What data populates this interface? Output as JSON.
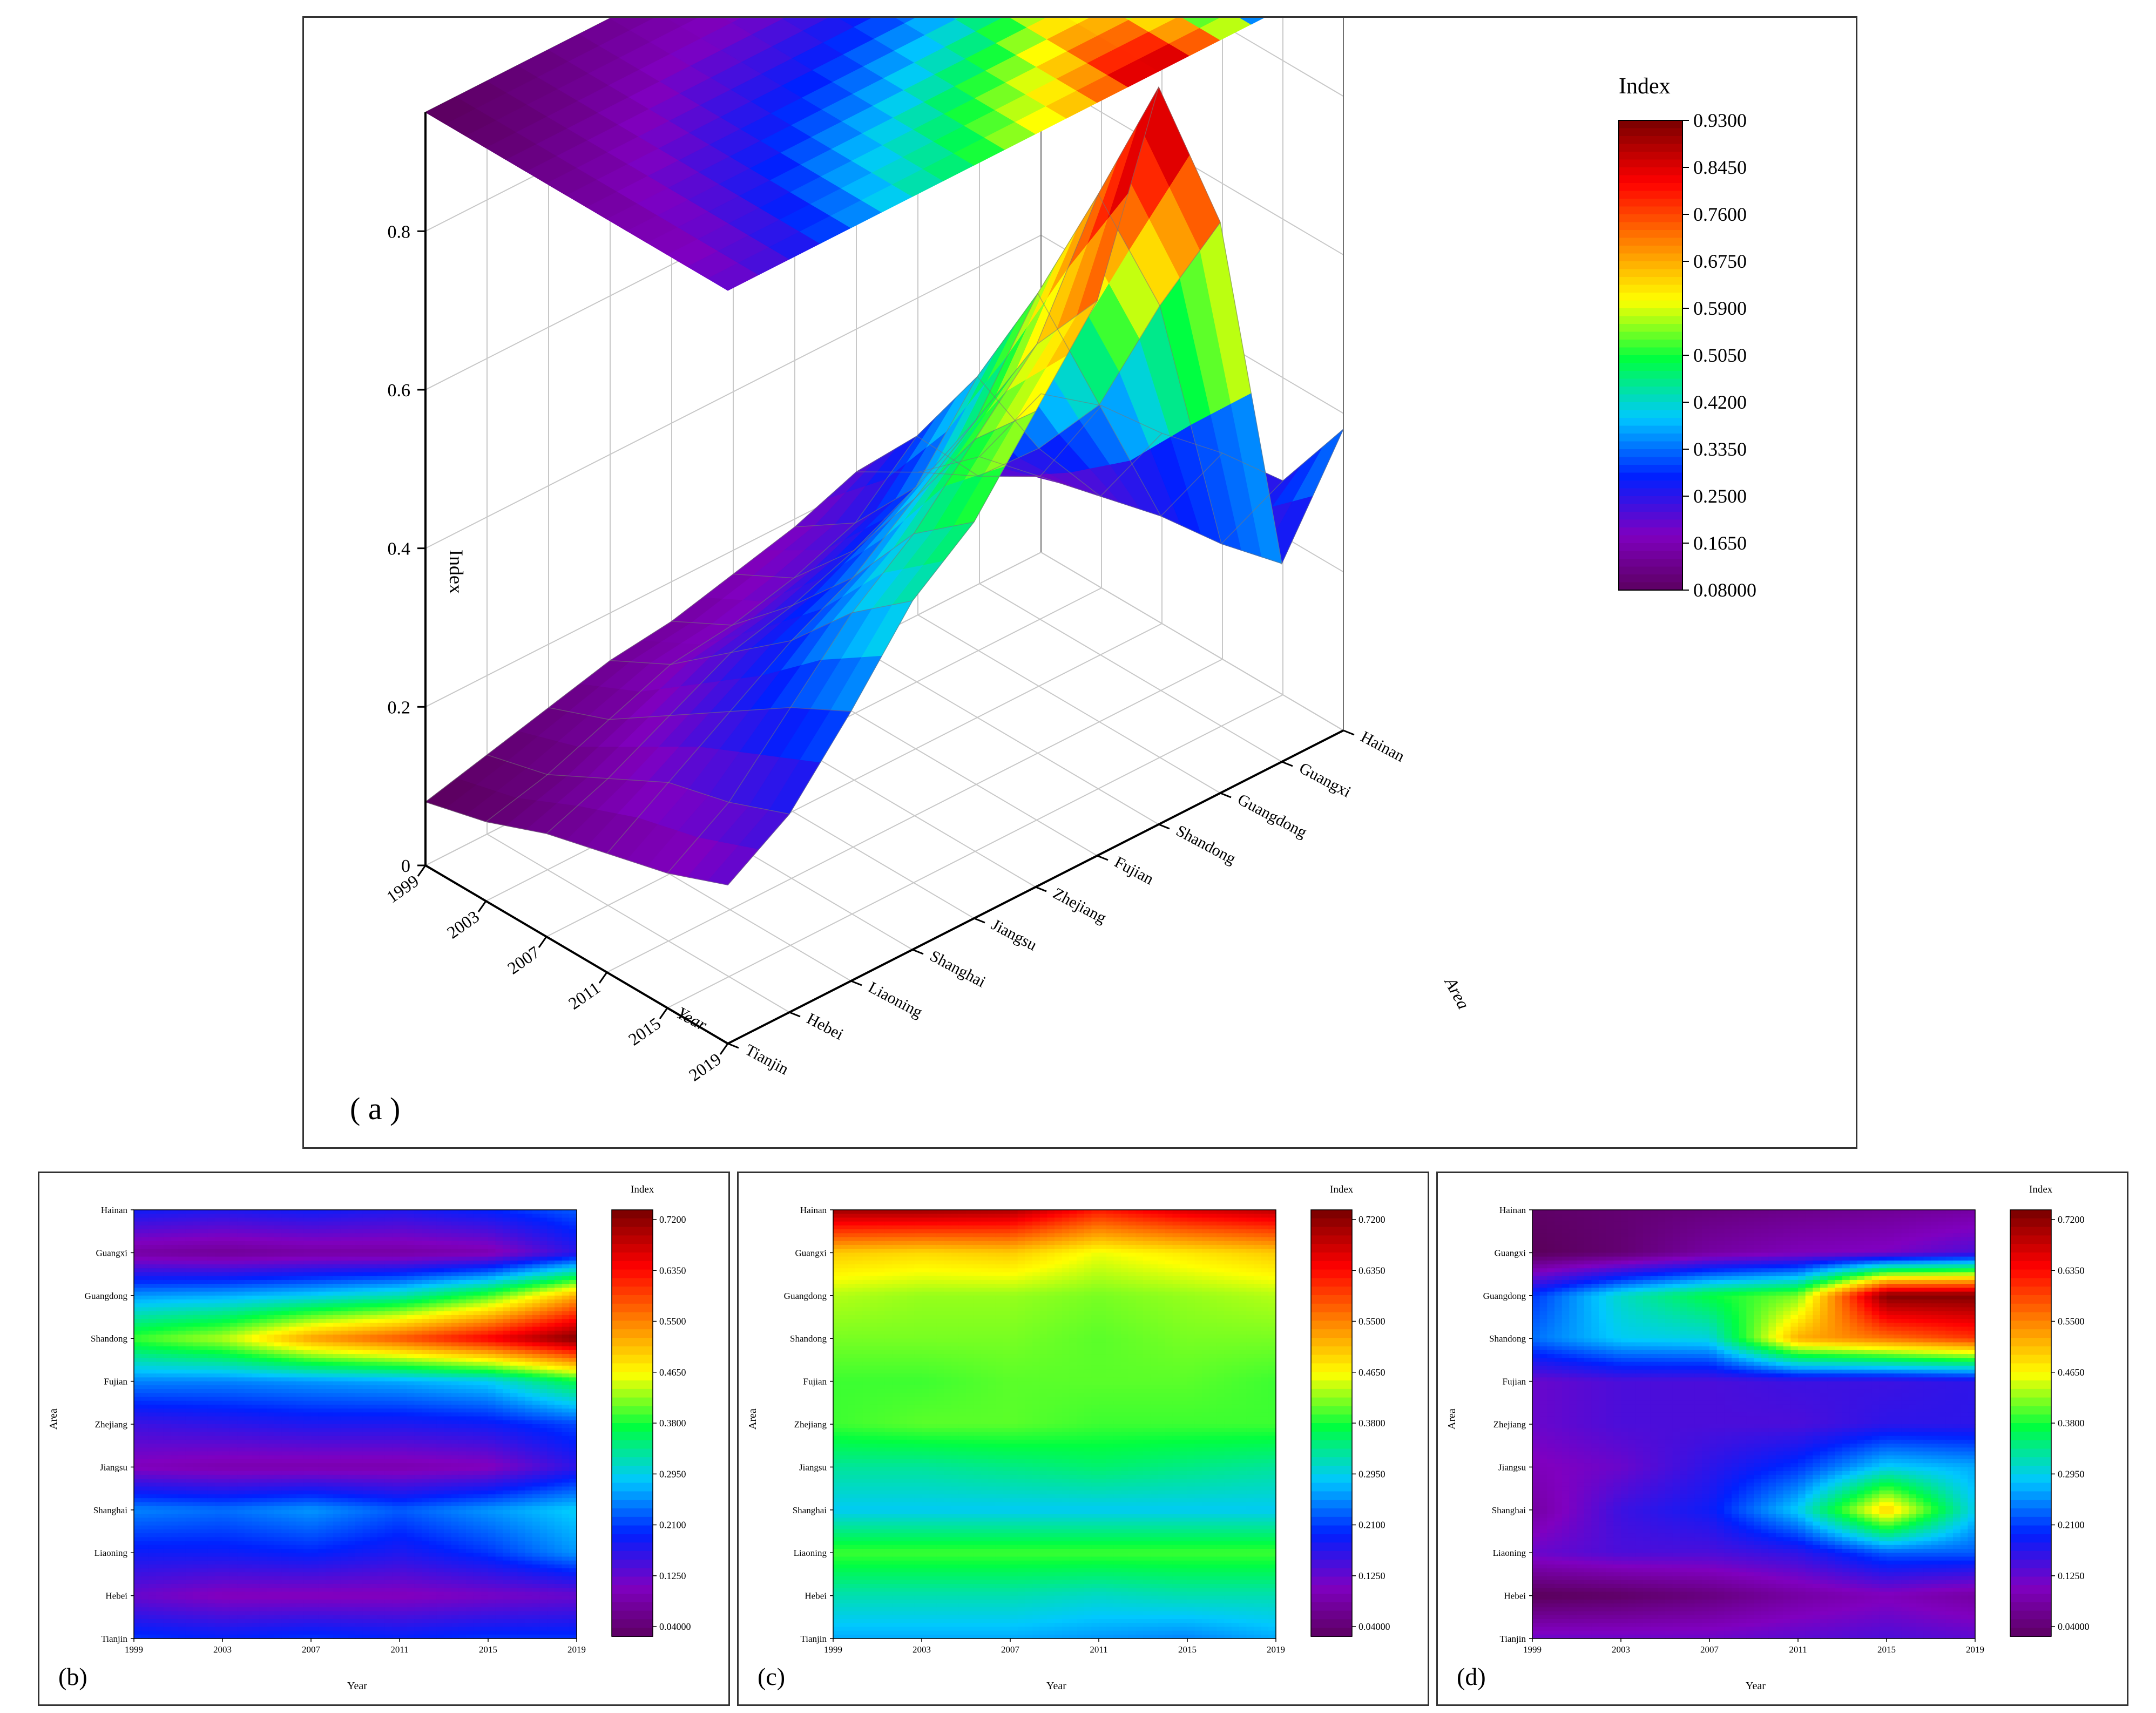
{
  "colors": {
    "stops": [
      "#5a005a",
      "#8000c0",
      "#0020ff",
      "#00c8ff",
      "#00ff40",
      "#ffff00",
      "#ff8000",
      "#ff0000",
      "#800000"
    ],
    "axis": "#000000",
    "grid": "#c8c8c8"
  },
  "panel_a": {
    "label": "( a )",
    "legend_title": "Index",
    "legend_ticks": [
      "0.9300",
      "0.8450",
      "0.7600",
      "0.6750",
      "0.5900",
      "0.5050",
      "0.4200",
      "0.3350",
      "0.2500",
      "0.1650",
      "0.08000"
    ],
    "z_label": "Index",
    "x_label": "Year",
    "y_label": "Area",
    "z_ticks": [
      "0",
      "0.2",
      "0.4",
      "0.6",
      "0.8"
    ],
    "year_ticks": [
      "1999",
      "2003",
      "2007",
      "2011",
      "2015",
      "2019"
    ],
    "area_ticks": [
      "Tianjin",
      "Hebei",
      "Liaoning",
      "Shanghai",
      "Jiangsu",
      "Zhejiang",
      "Fujian",
      "Shandong",
      "Guangdong",
      "Guangxi",
      "Hainan"
    ]
  },
  "panel_b": {
    "label": "(b)",
    "legend_title": "Index",
    "x_label": "Year",
    "y_label": "Area",
    "legend_ticks": [
      "0.7200",
      "0.6350",
      "0.5500",
      "0.4650",
      "0.3800",
      "0.2950",
      "0.2100",
      "0.1250",
      "0.04000"
    ]
  },
  "panel_c": {
    "label": "(c)",
    "legend_title": "Index",
    "x_label": "Year",
    "y_label": "Area",
    "legend_ticks": [
      "0.7200",
      "0.6350",
      "0.5500",
      "0.4650",
      "0.3800",
      "0.2950",
      "0.2100",
      "0.1250",
      "0.04000"
    ]
  },
  "panel_d": {
    "label": "(d)",
    "legend_title": "Index",
    "x_label": "Year",
    "y_label": "Area",
    "legend_ticks": [
      "0.7200",
      "0.6350",
      "0.5500",
      "0.4650",
      "0.3800",
      "0.2950",
      "0.2100",
      "0.1250",
      "0.04000"
    ]
  },
  "chart_data": [
    {
      "type": "surface3d",
      "panel": "a",
      "zlim": [
        0,
        0.93
      ],
      "colorscale_range": [
        0.08,
        0.93
      ],
      "x": [
        1999,
        2003,
        2007,
        2011,
        2015,
        2019
      ],
      "y": [
        "Tianjin",
        "Hebei",
        "Liaoning",
        "Shanghai",
        "Jiangsu",
        "Zhejiang",
        "Fujian",
        "Shandong",
        "Guangdong",
        "Guangxi",
        "Hainan"
      ],
      "z": [
        [
          0.08,
          0.1,
          0.12,
          0.14,
          0.15,
          0.17,
          0.19,
          0.22,
          0.18,
          0.16,
          0.2
        ],
        [
          0.1,
          0.12,
          0.15,
          0.18,
          0.19,
          0.21,
          0.24,
          0.31,
          0.22,
          0.18,
          0.23
        ],
        [
          0.13,
          0.16,
          0.2,
          0.24,
          0.26,
          0.29,
          0.33,
          0.43,
          0.3,
          0.2,
          0.24
        ],
        [
          0.15,
          0.2,
          0.25,
          0.3,
          0.34,
          0.4,
          0.46,
          0.58,
          0.4,
          0.22,
          0.26
        ],
        [
          0.17,
          0.22,
          0.3,
          0.38,
          0.44,
          0.52,
          0.6,
          0.75,
          0.57,
          0.23,
          0.27
        ],
        [
          0.2,
          0.25,
          0.34,
          0.44,
          0.5,
          0.6,
          0.7,
          0.93,
          0.72,
          0.25,
          0.38
        ]
      ]
    },
    {
      "type": "heatmap",
      "panel": "b",
      "colorscale_range": [
        0.04,
        0.72
      ],
      "x": [
        1999,
        2003,
        2007,
        2011,
        2015,
        2019
      ],
      "y": [
        "Tianjin",
        "Hebei",
        "Liaoning",
        "Shanghai",
        "Jiangsu",
        "Zhejiang",
        "Fujian",
        "Shandong",
        "Guangdong",
        "Guangxi",
        "Hainan"
      ],
      "z": [
        [
          0.22,
          0.14,
          0.2,
          0.26,
          0.12,
          0.17,
          0.26,
          0.4,
          0.27,
          0.1,
          0.2
        ],
        [
          0.21,
          0.12,
          0.2,
          0.25,
          0.11,
          0.18,
          0.26,
          0.44,
          0.28,
          0.09,
          0.19
        ],
        [
          0.22,
          0.12,
          0.21,
          0.27,
          0.11,
          0.19,
          0.27,
          0.53,
          0.3,
          0.1,
          0.2
        ],
        [
          0.21,
          0.12,
          0.19,
          0.24,
          0.11,
          0.19,
          0.28,
          0.58,
          0.33,
          0.1,
          0.19
        ],
        [
          0.22,
          0.13,
          0.22,
          0.27,
          0.12,
          0.2,
          0.3,
          0.64,
          0.4,
          0.11,
          0.21
        ],
        [
          0.22,
          0.14,
          0.27,
          0.3,
          0.18,
          0.23,
          0.38,
          0.72,
          0.52,
          0.18,
          0.24
        ]
      ]
    },
    {
      "type": "heatmap",
      "panel": "c",
      "colorscale_range": [
        0.04,
        0.72
      ],
      "x": [
        1999,
        2003,
        2007,
        2011,
        2015,
        2019
      ],
      "y": [
        "Tianjin",
        "Hebei",
        "Liaoning",
        "Shanghai",
        "Jiangsu",
        "Zhejiang",
        "Fujian",
        "Shandong",
        "Guangdong",
        "Guangxi",
        "Hainan"
      ],
      "z": [
        [
          0.28,
          0.33,
          0.4,
          0.3,
          0.34,
          0.4,
          0.4,
          0.42,
          0.44,
          0.5,
          0.7
        ],
        [
          0.28,
          0.33,
          0.4,
          0.3,
          0.34,
          0.41,
          0.4,
          0.42,
          0.43,
          0.49,
          0.7
        ],
        [
          0.28,
          0.33,
          0.4,
          0.3,
          0.35,
          0.41,
          0.41,
          0.42,
          0.43,
          0.5,
          0.69
        ],
        [
          0.27,
          0.32,
          0.4,
          0.3,
          0.36,
          0.4,
          0.41,
          0.41,
          0.42,
          0.46,
          0.62
        ],
        [
          0.26,
          0.33,
          0.4,
          0.3,
          0.35,
          0.4,
          0.41,
          0.42,
          0.43,
          0.48,
          0.66
        ],
        [
          0.28,
          0.33,
          0.4,
          0.3,
          0.34,
          0.4,
          0.4,
          0.42,
          0.44,
          0.5,
          0.68
        ]
      ]
    },
    {
      "type": "heatmap",
      "panel": "d",
      "colorscale_range": [
        0.04,
        0.72
      ],
      "x": [
        1999,
        2003,
        2007,
        2011,
        2015,
        2019
      ],
      "y": [
        "Tianjin",
        "Hebei",
        "Liaoning",
        "Shanghai",
        "Jiangsu",
        "Zhejiang",
        "Fujian",
        "Shandong",
        "Guangdong",
        "Guangxi",
        "Hainan"
      ],
      "z": [
        [
          0.14,
          0.04,
          0.14,
          0.1,
          0.12,
          0.14,
          0.14,
          0.25,
          0.22,
          0.04,
          0.05
        ],
        [
          0.14,
          0.05,
          0.16,
          0.17,
          0.14,
          0.16,
          0.16,
          0.3,
          0.32,
          0.06,
          0.06
        ],
        [
          0.14,
          0.07,
          0.16,
          0.2,
          0.18,
          0.16,
          0.16,
          0.31,
          0.38,
          0.1,
          0.07
        ],
        [
          0.15,
          0.1,
          0.18,
          0.3,
          0.22,
          0.16,
          0.17,
          0.52,
          0.42,
          0.12,
          0.08
        ],
        [
          0.16,
          0.12,
          0.24,
          0.5,
          0.3,
          0.18,
          0.17,
          0.56,
          0.72,
          0.13,
          0.09
        ],
        [
          0.15,
          0.1,
          0.24,
          0.3,
          0.28,
          0.18,
          0.18,
          0.6,
          0.72,
          0.16,
          0.1
        ]
      ]
    }
  ]
}
